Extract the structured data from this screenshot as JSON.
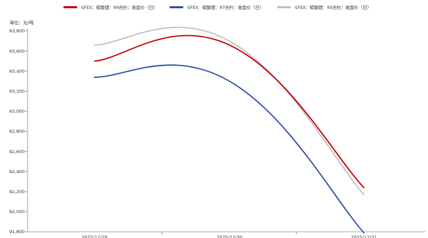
{
  "chart_data": {
    "type": "line",
    "unit_label": "单位：元/吨",
    "categories": [
      "2025/12/29",
      "2025/12/30",
      "2025/12/31"
    ],
    "ylim": [
      91800,
      93800
    ],
    "y_ticks": [
      91800,
      92000,
      92200,
      92400,
      92600,
      92800,
      93000,
      93200,
      93400,
      93600,
      93800
    ],
    "y_tick_labels": [
      "91,800",
      "92,000",
      "92,200",
      "92,400",
      "92,600",
      "92,800",
      "93,000",
      "93,200",
      "93,400",
      "93,600",
      "93,800"
    ],
    "series": [
      {
        "name": "GFEX：碳酸锂：09合约：收盘价（日）",
        "color": "#c00000",
        "values": [
          93500,
          93660,
          92240
        ]
      },
      {
        "name": "GFEX：碳酸锂：07合约：收盘价（日）",
        "color": "#2f4fa0",
        "values": [
          93340,
          93300,
          91790
        ]
      },
      {
        "name": "GFEX：碳酸锂：05合约：收盘价（日）",
        "color": "#bfbfbf",
        "values": [
          93660,
          93700,
          92170
        ]
      }
    ],
    "grid": false,
    "legend_position": "top"
  }
}
